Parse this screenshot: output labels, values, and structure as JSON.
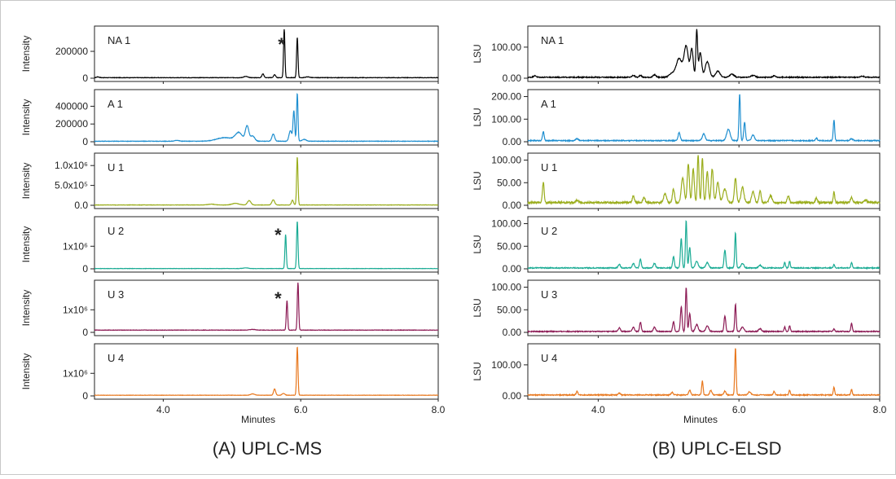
{
  "figure": {
    "caption_left": "(A) UPLC-MS",
    "caption_right": "(B) UPLC-ELSD"
  },
  "chart_data": [
    {
      "type": "line",
      "title": "(A) UPLC-MS",
      "xlabel": "Minutes",
      "xlim": [
        3.0,
        8.0
      ],
      "x_ticks": [
        "4.0",
        "6.0",
        "8.0"
      ],
      "panels": [
        {
          "name": "NA 1",
          "ylabel": "Intensity",
          "ylim": [
            0,
            370000
          ],
          "y_ticks": [
            {
              "v": 0,
              "label": "0"
            },
            {
              "v": 200000,
              "label": "200000"
            }
          ],
          "color": "#000000",
          "annotation": "*",
          "annotation_x": 5.72,
          "annotation_y": 1,
          "baseline": 4000,
          "noise": 1500,
          "peaks": [
            [
              3.05,
              6000,
              0.02
            ],
            [
              5.2,
              9000,
              0.03
            ],
            [
              5.45,
              28000,
              0.015
            ],
            [
              5.62,
              22000,
              0.015
            ],
            [
              5.76,
              360000,
              0.01
            ],
            [
              5.95,
              300000,
              0.01
            ],
            [
              6.1,
              6000,
              0.03
            ]
          ]
        },
        {
          "name": "A 1",
          "ylabel": "Intensity",
          "ylim": [
            0,
            560000
          ],
          "y_ticks": [
            {
              "v": 0,
              "label": "0"
            },
            {
              "v": 200000,
              "label": "200000"
            },
            {
              "v": 400000,
              "label": "400000"
            }
          ],
          "color": "#1f8fd0",
          "baseline": 6000,
          "noise": 2500,
          "peaks": [
            [
              4.2,
              10000,
              0.03
            ],
            [
              4.9,
              40000,
              0.12
            ],
            [
              5.1,
              90000,
              0.05
            ],
            [
              5.22,
              170000,
              0.025
            ],
            [
              5.3,
              60000,
              0.03
            ],
            [
              5.6,
              80000,
              0.02
            ],
            [
              5.85,
              120000,
              0.02
            ],
            [
              5.9,
              340000,
              0.012
            ],
            [
              5.95,
              540000,
              0.01
            ],
            [
              6.05,
              20000,
              0.03
            ]
          ]
        },
        {
          "name": "U 1",
          "ylabel": "Intensity",
          "ylim": [
            0,
            1250000
          ],
          "y_ticks": [
            {
              "v": 0,
              "label": "0.0"
            },
            {
              "v": 500000,
              "label": "5.0x10⁵"
            },
            {
              "v": 1000000,
              "label": "1.0x10⁶"
            }
          ],
          "color": "#9aad1c",
          "baseline": 8000,
          "noise": 4000,
          "peaks": [
            [
              4.7,
              20000,
              0.05
            ],
            [
              5.05,
              40000,
              0.05
            ],
            [
              5.25,
              110000,
              0.025
            ],
            [
              5.6,
              130000,
              0.02
            ],
            [
              5.88,
              120000,
              0.015
            ],
            [
              5.95,
              1210000,
              0.01
            ]
          ]
        },
        {
          "name": "U 2",
          "ylabel": "Intensity",
          "ylim": [
            0,
            2200000
          ],
          "y_ticks": [
            {
              "v": 0,
              "label": "0"
            },
            {
              "v": 1000000,
              "label": "1x10⁶"
            }
          ],
          "color": "#1aab94",
          "annotation": "*",
          "annotation_x": 5.67,
          "annotation_y": 1,
          "baseline": 12000,
          "noise": 6000,
          "peaks": [
            [
              5.2,
              30000,
              0.04
            ],
            [
              5.78,
              1500000,
              0.01
            ],
            [
              5.95,
              2100000,
              0.01
            ]
          ]
        },
        {
          "name": "U 3",
          "ylabel": "Intensity",
          "ylim": [
            0,
            2200000
          ],
          "y_ticks": [
            {
              "v": 0,
              "label": "0"
            },
            {
              "v": 1000000,
              "label": "1x10⁶"
            }
          ],
          "color": "#8c1b55",
          "annotation": "*",
          "annotation_x": 5.67,
          "annotation_y": 1,
          "baseline": 100000,
          "noise": 8000,
          "peaks": [
            [
              5.3,
              30000,
              0.04
            ],
            [
              5.8,
              1300000,
              0.01
            ],
            [
              5.96,
              2100000,
              0.01
            ]
          ]
        },
        {
          "name": "U 4",
          "ylabel": "Intensity",
          "ylim": [
            0,
            2200000
          ],
          "y_ticks": [
            {
              "v": 0,
              "label": "0"
            },
            {
              "v": 1000000,
              "label": "1x10⁶"
            }
          ],
          "color": "#e8781e",
          "baseline": 30000,
          "noise": 6000,
          "peaks": [
            [
              5.3,
              60000,
              0.03
            ],
            [
              5.62,
              280000,
              0.015
            ],
            [
              5.75,
              80000,
              0.02
            ],
            [
              5.95,
              2150000,
              0.01
            ]
          ]
        }
      ]
    },
    {
      "type": "line",
      "title": "(B) UPLC-ELSD",
      "xlabel": "Minutes",
      "xlim": [
        3.0,
        8.0
      ],
      "x_ticks": [
        "4.0",
        "6.0",
        "8.0"
      ],
      "panels": [
        {
          "name": "NA 1",
          "ylabel": "LSU",
          "ylim": [
            0,
            160
          ],
          "y_ticks": [
            {
              "v": 0,
              "label": "0.00"
            },
            {
              "v": 100,
              "label": "100.00"
            }
          ],
          "color": "#000000",
          "baseline": 3,
          "noise": 1.5,
          "peaks": [
            [
              3.1,
              5,
              0.02
            ],
            [
              4.5,
              6,
              0.02
            ],
            [
              4.6,
              7,
              0.015
            ],
            [
              4.8,
              8,
              0.02
            ],
            [
              5.05,
              12,
              0.04
            ],
            [
              5.15,
              60,
              0.04
            ],
            [
              5.25,
              100,
              0.03
            ],
            [
              5.33,
              90,
              0.02
            ],
            [
              5.4,
              150,
              0.012
            ],
            [
              5.45,
              80,
              0.02
            ],
            [
              5.55,
              50,
              0.03
            ],
            [
              5.7,
              20,
              0.03
            ],
            [
              5.9,
              10,
              0.03
            ],
            [
              6.2,
              6,
              0.03
            ],
            [
              6.5,
              5,
              0.02
            ],
            [
              7.75,
              4,
              0.02
            ]
          ]
        },
        {
          "name": "A 1",
          "ylabel": "LSU",
          "ylim": [
            0,
            220
          ],
          "y_ticks": [
            {
              "v": 0,
              "label": "0.00"
            },
            {
              "v": 100,
              "label": "100.00"
            },
            {
              "v": 200,
              "label": "200.00"
            }
          ],
          "color": "#1f8fd0",
          "baseline": 5,
          "noise": 2,
          "peaks": [
            [
              3.22,
              40,
              0.012
            ],
            [
              3.7,
              8,
              0.02
            ],
            [
              5.15,
              35,
              0.015
            ],
            [
              5.5,
              30,
              0.02
            ],
            [
              5.85,
              50,
              0.025
            ],
            [
              6.01,
              205,
              0.01
            ],
            [
              6.08,
              80,
              0.012
            ],
            [
              6.2,
              25,
              0.02
            ],
            [
              7.1,
              12,
              0.012
            ],
            [
              7.35,
              92,
              0.01
            ],
            [
              7.6,
              8,
              0.02
            ]
          ]
        },
        {
          "name": "U 1",
          "ylabel": "LSU",
          "ylim": [
            0,
            110
          ],
          "y_ticks": [
            {
              "v": 0,
              "label": "0.00"
            },
            {
              "v": 50,
              "label": "50.00"
            },
            {
              "v": 100,
              "label": "100.00"
            }
          ],
          "color": "#9aad1c",
          "baseline": 6,
          "noise": 2,
          "peaks": [
            [
              3.22,
              45,
              0.012
            ],
            [
              3.7,
              5,
              0.02
            ],
            [
              4.5,
              15,
              0.015
            ],
            [
              4.65,
              12,
              0.015
            ],
            [
              4.95,
              20,
              0.02
            ],
            [
              5.07,
              30,
              0.015
            ],
            [
              5.2,
              55,
              0.02
            ],
            [
              5.28,
              85,
              0.015
            ],
            [
              5.35,
              75,
              0.015
            ],
            [
              5.42,
              105,
              0.012
            ],
            [
              5.48,
              100,
              0.012
            ],
            [
              5.55,
              70,
              0.015
            ],
            [
              5.62,
              75,
              0.015
            ],
            [
              5.7,
              45,
              0.02
            ],
            [
              5.8,
              30,
              0.025
            ],
            [
              5.95,
              55,
              0.015
            ],
            [
              6.05,
              35,
              0.02
            ],
            [
              6.2,
              25,
              0.02
            ],
            [
              6.3,
              25,
              0.015
            ],
            [
              6.45,
              15,
              0.02
            ],
            [
              6.7,
              15,
              0.015
            ],
            [
              7.1,
              10,
              0.015
            ],
            [
              7.35,
              25,
              0.01
            ],
            [
              7.6,
              12,
              0.015
            ],
            [
              7.8,
              6,
              0.02
            ]
          ]
        },
        {
          "name": "U 2",
          "ylabel": "LSU",
          "ylim": [
            0,
            110
          ],
          "y_ticks": [
            {
              "v": 0,
              "label": "0.00"
            },
            {
              "v": 50,
              "label": "50.00"
            },
            {
              "v": 100,
              "label": "100.00"
            }
          ],
          "color": "#1aab94",
          "baseline": 2,
          "noise": 1,
          "peaks": [
            [
              4.3,
              8,
              0.015
            ],
            [
              4.5,
              10,
              0.015
            ],
            [
              4.6,
              20,
              0.012
            ],
            [
              4.8,
              10,
              0.015
            ],
            [
              5.07,
              25,
              0.012
            ],
            [
              5.18,
              65,
              0.012
            ],
            [
              5.25,
              105,
              0.01
            ],
            [
              5.3,
              45,
              0.012
            ],
            [
              5.4,
              15,
              0.02
            ],
            [
              5.55,
              12,
              0.02
            ],
            [
              5.8,
              40,
              0.012
            ],
            [
              5.95,
              78,
              0.01
            ],
            [
              6.05,
              10,
              0.02
            ],
            [
              6.3,
              6,
              0.02
            ],
            [
              6.65,
              12,
              0.01
            ],
            [
              6.72,
              15,
              0.01
            ],
            [
              7.35,
              8,
              0.01
            ],
            [
              7.6,
              12,
              0.01
            ]
          ]
        },
        {
          "name": "U 3",
          "ylabel": "LSU",
          "ylim": [
            0,
            110
          ],
          "y_ticks": [
            {
              "v": 0,
              "label": "0.00"
            },
            {
              "v": 50,
              "label": "50.00"
            },
            {
              "v": 100,
              "label": "100.00"
            }
          ],
          "color": "#8c1b55",
          "baseline": 2,
          "noise": 1,
          "peaks": [
            [
              4.3,
              8,
              0.015
            ],
            [
              4.5,
              10,
              0.015
            ],
            [
              4.6,
              20,
              0.012
            ],
            [
              4.8,
              10,
              0.015
            ],
            [
              5.07,
              22,
              0.012
            ],
            [
              5.18,
              55,
              0.012
            ],
            [
              5.25,
              98,
              0.01
            ],
            [
              5.3,
              40,
              0.012
            ],
            [
              5.4,
              15,
              0.02
            ],
            [
              5.55,
              12,
              0.02
            ],
            [
              5.8,
              35,
              0.012
            ],
            [
              5.95,
              60,
              0.01
            ],
            [
              6.05,
              10,
              0.02
            ],
            [
              6.3,
              6,
              0.02
            ],
            [
              6.65,
              10,
              0.01
            ],
            [
              6.72,
              13,
              0.01
            ],
            [
              7.35,
              6,
              0.01
            ],
            [
              7.6,
              18,
              0.01
            ]
          ]
        },
        {
          "name": "U 4",
          "ylabel": "LSU",
          "ylim": [
            0,
            160
          ],
          "y_ticks": [
            {
              "v": 0,
              "label": "0.00"
            },
            {
              "v": 100,
              "label": "100.00"
            }
          ],
          "color": "#e8781e",
          "baseline": 3,
          "noise": 1.5,
          "peaks": [
            [
              3.7,
              12,
              0.012
            ],
            [
              4.3,
              6,
              0.015
            ],
            [
              5.05,
              8,
              0.015
            ],
            [
              5.3,
              15,
              0.015
            ],
            [
              5.48,
              45,
              0.01
            ],
            [
              5.6,
              15,
              0.015
            ],
            [
              5.8,
              12,
              0.015
            ],
            [
              5.95,
              150,
              0.01
            ],
            [
              6.15,
              10,
              0.02
            ],
            [
              6.5,
              12,
              0.012
            ],
            [
              6.72,
              15,
              0.01
            ],
            [
              7.35,
              25,
              0.01
            ],
            [
              7.6,
              18,
              0.01
            ]
          ]
        }
      ]
    }
  ]
}
